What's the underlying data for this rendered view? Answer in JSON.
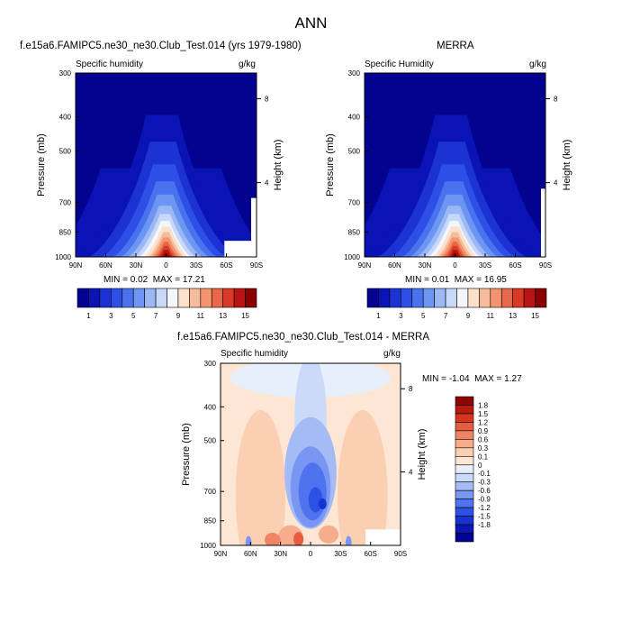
{
  "main_title": "ANN",
  "panels": {
    "model": {
      "title": "f.e15a6.FAMIPC5.ne30_ne30.Club_Test.014 (yrs 1979-1980)",
      "left_label": "Specific humidity",
      "units": "g/kg",
      "min_label": "MIN =",
      "min_value": "0.02",
      "max_label": "MAX =",
      "max_value": "17.21"
    },
    "obs": {
      "title": "MERRA",
      "left_label": "Specific Humidity",
      "units": "g/kg",
      "min_label": "MIN =",
      "min_value": "0.01",
      "max_label": "MAX =",
      "max_value": "16.95"
    },
    "diff": {
      "title": "f.e15a6.FAMIPC5.ne30_ne30.Club_Test.014 - MERRA",
      "left_label": "Specific humidity",
      "units": "g/kg",
      "min_label": "MIN =",
      "min_value": "-1.04",
      "max_label": "MAX =",
      "max_value": "1.27"
    }
  },
  "axis_labels": {
    "y_left": "Pressure (mb)",
    "y_right": "Height (km)"
  },
  "chart_data": [
    {
      "type": "heatmap",
      "panel": "model",
      "title": "f.e15a6.FAMIPC5.ne30_ne30.Club_Test.014 (yrs 1979-1980)",
      "variable": "Specific humidity",
      "units": "g/kg",
      "x_ticks": [
        "90N",
        "60N",
        "30N",
        "0",
        "30S",
        "60S",
        "90S"
      ],
      "y_ticks_pressure_mb": [
        300,
        400,
        500,
        700,
        850,
        1000
      ],
      "y_right_ticks_height_km": [
        8,
        4
      ],
      "ylabel": "Pressure (mb)",
      "ylabel_right": "Height (km)",
      "ylim": [
        1000,
        300
      ],
      "y_scale": "log",
      "min": 0.02,
      "max": 17.21,
      "colorbar_ticks": [
        1,
        3,
        5,
        7,
        9,
        11,
        13,
        15
      ],
      "colors": [
        "#030390",
        "#0a14b4",
        "#1c32d2",
        "#2d4fe5",
        "#4a72ee",
        "#6d95f2",
        "#9bb8f5",
        "#c8d8f9",
        "#f4f6fb",
        "#fbe0cc",
        "#f7bc9c",
        "#f2956e",
        "#e8684a",
        "#d83a26",
        "#b91414",
        "#8b0000"
      ],
      "field_levels": [
        {
          "value": 0.5,
          "pressure_mb": 630,
          "halfwidth_deg": 90
        },
        {
          "value": 1,
          "pressure_mb": 390,
          "halfwidth_deg": 30
        },
        {
          "value": 2,
          "pressure_mb": 470,
          "halfwidth_deg": 26
        },
        {
          "value": 3,
          "pressure_mb": 545,
          "halfwidth_deg": 22
        },
        {
          "value": 4,
          "pressure_mb": 610,
          "halfwidth_deg": 18
        },
        {
          "value": 5,
          "pressure_mb": 670,
          "halfwidth_deg": 15
        },
        {
          "value": 6,
          "pressure_mb": 725,
          "halfwidth_deg": 12
        },
        {
          "value": 7,
          "pressure_mb": 760,
          "halfwidth_deg": 10
        },
        {
          "value": 8,
          "pressure_mb": 800,
          "halfwidth_deg": 8
        },
        {
          "value": 9,
          "pressure_mb": 830,
          "halfwidth_deg": 7
        },
        {
          "value": 10,
          "pressure_mb": 860,
          "halfwidth_deg": 6
        },
        {
          "value": 11,
          "pressure_mb": 890,
          "halfwidth_deg": 5
        },
        {
          "value": 12,
          "pressure_mb": 915,
          "halfwidth_deg": 4
        },
        {
          "value": 13,
          "pressure_mb": 940,
          "halfwidth_deg": 3
        },
        {
          "value": 14,
          "pressure_mb": 965,
          "halfwidth_deg": 2
        },
        {
          "value": 15,
          "pressure_mb": 985,
          "halfwidth_deg": 1
        }
      ]
    },
    {
      "type": "heatmap",
      "panel": "obs",
      "title": "MERRA",
      "variable": "Specific Humidity",
      "units": "g/kg",
      "x_ticks": [
        "90N",
        "60N",
        "30N",
        "0",
        "30S",
        "60S",
        "90S"
      ],
      "y_ticks_pressure_mb": [
        300,
        400,
        500,
        700,
        850,
        1000
      ],
      "y_right_ticks_height_km": [
        8,
        4
      ],
      "ylabel": "Pressure (mb)",
      "ylabel_right": "Height (km)",
      "ylim": [
        1000,
        300
      ],
      "y_scale": "log",
      "min": 0.01,
      "max": 16.95,
      "colorbar_ticks": [
        1,
        3,
        5,
        7,
        9,
        11,
        13,
        15
      ],
      "colors": [
        "#030390",
        "#0a14b4",
        "#1c32d2",
        "#2d4fe5",
        "#4a72ee",
        "#6d95f2",
        "#9bb8f5",
        "#c8d8f9",
        "#f4f6fb",
        "#fbe0cc",
        "#f7bc9c",
        "#f2956e",
        "#e8684a",
        "#d83a26",
        "#b91414",
        "#8b0000"
      ]
    },
    {
      "type": "heatmap",
      "panel": "diff",
      "title": "f.e15a6.FAMIPC5.ne30_ne30.Club_Test.014 - MERRA",
      "variable": "Specific humidity",
      "units": "g/kg",
      "x_ticks": [
        "90N",
        "60N",
        "30N",
        "0",
        "30S",
        "60S",
        "90S"
      ],
      "y_ticks_pressure_mb": [
        300,
        400,
        500,
        700,
        850,
        1000
      ],
      "y_right_ticks_height_km": [
        8,
        4
      ],
      "ylabel": "Pressure (mb)",
      "ylabel_right": "Height (km)",
      "ylim": [
        1000,
        300
      ],
      "y_scale": "log",
      "min": -1.04,
      "max": 1.27,
      "colorbar_ticks": [
        "1.8",
        "1.5",
        "1.2",
        "0.9",
        "0.6",
        "0.3",
        "0.1",
        "0",
        "-0.1",
        "-0.3",
        "-0.6",
        "-0.9",
        "-1.2",
        "-1.5",
        "-1.8"
      ],
      "colors": [
        "#020390",
        "#0a17b4",
        "#1632d2",
        "#2e51e5",
        "#4f73ee",
        "#7896f2",
        "#a4bbf5",
        "#cbdaf8",
        "#e7effb",
        "#fde6d4",
        "#fbcfb2",
        "#f7ad8c",
        "#f08566",
        "#e55c40",
        "#d6351e",
        "#b81a0e",
        "#8f0404"
      ]
    }
  ],
  "colors": {
    "deep_blue": "#030390",
    "dark_red": "#8b0000",
    "neutral": "#f4f6fb"
  }
}
